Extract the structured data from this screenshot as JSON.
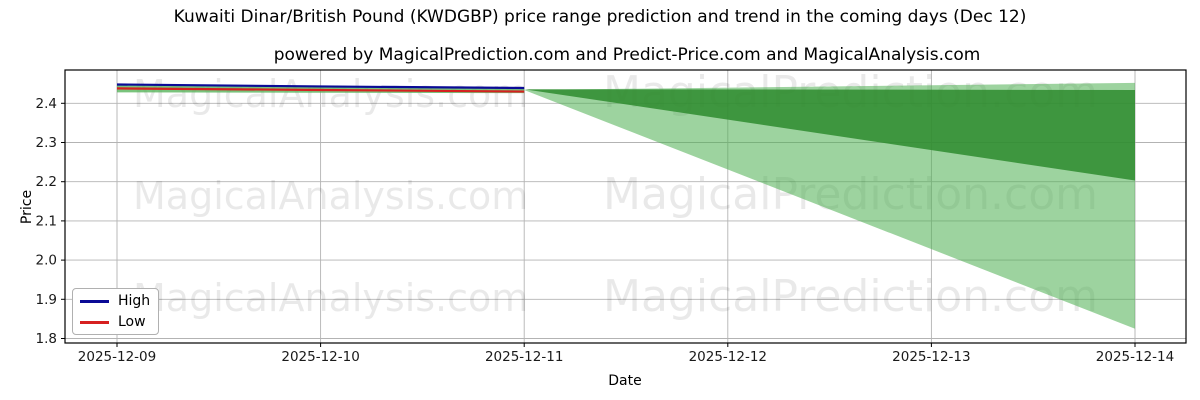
{
  "chart_data": {
    "type": "line",
    "title": "Kuwaiti Dinar/British Pound (KWDGBP) price range prediction and trend in the coming days (Dec 12)",
    "subtitle": "powered by MagicalPrediction.com and Predict-Price.com and MagicalAnalysis.com",
    "xlabel": "Date",
    "ylabel": "Price",
    "x_tick_labels": [
      "2025-12-09",
      "2025-12-10",
      "2025-12-11",
      "2025-12-12",
      "2025-12-13",
      "2025-12-14"
    ],
    "y_tick_labels": [
      "1.8",
      "1.9",
      "2.0",
      "2.1",
      "2.2",
      "2.3",
      "2.4"
    ],
    "y_tick_values": [
      1.8,
      1.9,
      2.0,
      2.1,
      2.2,
      2.3,
      2.4
    ],
    "ylim": [
      1.791,
      2.485
    ],
    "grid": true,
    "legend_position": "lower left",
    "series": [
      {
        "name": "High",
        "color": "#0a0a96",
        "x_indices": [
          0,
          1,
          2
        ],
        "values": [
          2.448,
          2.443,
          2.439
        ]
      },
      {
        "name": "Low",
        "color": "#d62020",
        "x_indices": [
          0,
          1,
          2
        ],
        "values": [
          2.438,
          2.434,
          2.43
        ]
      }
    ],
    "bands": [
      {
        "name": "history-high-low-range",
        "color": "#4caf50",
        "opacity": 0.75,
        "x_indices": [
          0,
          2
        ],
        "upper": [
          2.448,
          2.439
        ],
        "lower": [
          2.428,
          2.426
        ]
      },
      {
        "name": "prediction-range-wide",
        "color": "#4caf50",
        "opacity": 0.55,
        "x_indices": [
          2,
          5
        ],
        "upper": [
          2.434,
          2.452
        ],
        "lower": [
          2.434,
          1.825
        ]
      },
      {
        "name": "prediction-range-narrow",
        "color": "#2e8b2e",
        "opacity": 0.85,
        "x_indices": [
          2,
          5
        ],
        "upper": [
          2.436,
          2.434
        ],
        "lower": [
          2.436,
          2.203
        ]
      }
    ],
    "watermarks": {
      "left": "MagicalAnalysis.com",
      "right": "MagicalPrediction.com"
    },
    "colors": {
      "grid": "#b3b3b3",
      "spine": "#000000",
      "tick_label": "#1a1a1a",
      "watermark": "#000000"
    }
  },
  "legend": {
    "items": [
      {
        "label": "High",
        "color": "#0a0a96"
      },
      {
        "label": "Low",
        "color": "#d62020"
      }
    ]
  }
}
